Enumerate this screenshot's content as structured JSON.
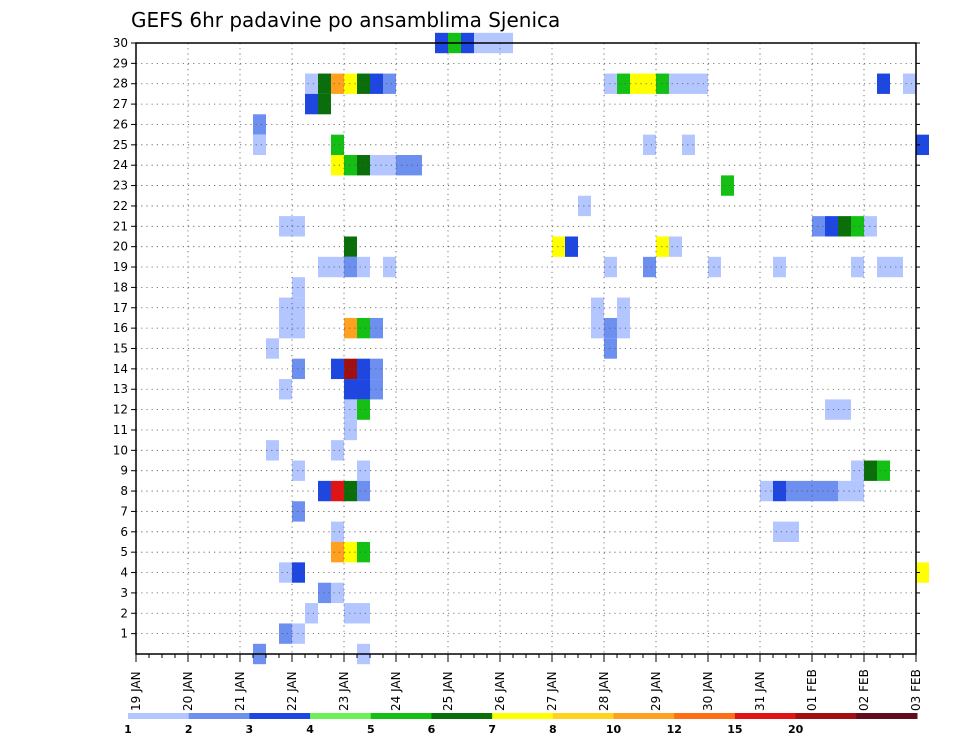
{
  "chart_data": {
    "type": "heatmap",
    "title": "GEFS 6hr padavine po ansamblima Sjenica",
    "ytick_labels": [
      "1",
      "2",
      "3",
      "4",
      "5",
      "6",
      "7",
      "8",
      "9",
      "10",
      "11",
      "12",
      "13",
      "14",
      "15",
      "16",
      "17",
      "18",
      "19",
      "20",
      "21",
      "22",
      "23",
      "24",
      "25",
      "26",
      "27",
      "28",
      "29",
      "30"
    ],
    "yrange": [
      0,
      30
    ],
    "xtick_labels": [
      "19 JAN",
      "20 JAN",
      "21 JAN",
      "22 JAN",
      "23 JAN",
      "24 JAN",
      "25 JAN",
      "26 JAN",
      "27 JAN",
      "28 JAN",
      "29 JAN",
      "30 JAN",
      "31 JAN",
      "01 FEB",
      "02 FEB",
      "03 FEB"
    ],
    "xrange_days": [
      0,
      15
    ],
    "grid": true,
    "colorbar": {
      "labels": [
        "1",
        "2",
        "3",
        "4",
        "5",
        "6",
        "7",
        "8",
        "10",
        "12",
        "15",
        "20"
      ],
      "colors": [
        "#b3c6ff",
        "#6d8ff0",
        "#1e46e0",
        "#6ef05a",
        "#13c013",
        "#0a6e0a",
        "#ffff00",
        "#ffd21e",
        "#ffa01e",
        "#ff6e14",
        "#e01414",
        "#a01010",
        "#640a1e"
      ]
    },
    "cells": [
      {
        "member": 30,
        "step": 23,
        "level": 3
      },
      {
        "member": 30,
        "step": 24,
        "level": 5
      },
      {
        "member": 30,
        "step": 25,
        "level": 3
      },
      {
        "member": 30,
        "step": 26,
        "level": 1
      },
      {
        "member": 30,
        "step": 27,
        "level": 1
      },
      {
        "member": 30,
        "step": 28,
        "level": 1
      },
      {
        "member": 28,
        "step": 13,
        "level": 1
      },
      {
        "member": 28,
        "step": 14,
        "level": 6
      },
      {
        "member": 28,
        "step": 15,
        "level": 9
      },
      {
        "member": 28,
        "step": 16,
        "level": 7
      },
      {
        "member": 28,
        "step": 17,
        "level": 6
      },
      {
        "member": 28,
        "step": 18,
        "level": 3
      },
      {
        "member": 28,
        "step": 19,
        "level": 2
      },
      {
        "member": 28,
        "step": 36,
        "level": 1
      },
      {
        "member": 28,
        "step": 37,
        "level": 5
      },
      {
        "member": 28,
        "step": 38,
        "level": 7
      },
      {
        "member": 28,
        "step": 39,
        "level": 7
      },
      {
        "member": 28,
        "step": 40,
        "level": 5
      },
      {
        "member": 28,
        "step": 41,
        "level": 1
      },
      {
        "member": 28,
        "step": 42,
        "level": 1
      },
      {
        "member": 28,
        "step": 43,
        "level": 1
      },
      {
        "member": 28,
        "step": 57,
        "level": 3
      },
      {
        "member": 28,
        "step": 59,
        "level": 1
      },
      {
        "member": 27,
        "step": 13,
        "level": 3
      },
      {
        "member": 27,
        "step": 14,
        "level": 6
      },
      {
        "member": 26,
        "step": 9,
        "level": 2
      },
      {
        "member": 25,
        "step": 9,
        "level": 1
      },
      {
        "member": 25,
        "step": 15,
        "level": 5
      },
      {
        "member": 25,
        "step": 39,
        "level": 1
      },
      {
        "member": 25,
        "step": 42,
        "level": 1
      },
      {
        "member": 25,
        "step": 60,
        "level": 3
      },
      {
        "member": 24,
        "step": 15,
        "level": 7
      },
      {
        "member": 24,
        "step": 16,
        "level": 5
      },
      {
        "member": 24,
        "step": 17,
        "level": 6
      },
      {
        "member": 24,
        "step": 18,
        "level": 1
      },
      {
        "member": 24,
        "step": 19,
        "level": 1
      },
      {
        "member": 24,
        "step": 20,
        "level": 2
      },
      {
        "member": 24,
        "step": 21,
        "level": 2
      },
      {
        "member": 23,
        "step": 45,
        "level": 5
      },
      {
        "member": 22,
        "step": 34,
        "level": 1
      },
      {
        "member": 21,
        "step": 11,
        "level": 1
      },
      {
        "member": 21,
        "step": 12,
        "level": 1
      },
      {
        "member": 21,
        "step": 52,
        "level": 2
      },
      {
        "member": 21,
        "step": 53,
        "level": 3
      },
      {
        "member": 21,
        "step": 54,
        "level": 6
      },
      {
        "member": 21,
        "step": 55,
        "level": 5
      },
      {
        "member": 21,
        "step": 56,
        "level": 1
      },
      {
        "member": 20,
        "step": 16,
        "level": 6
      },
      {
        "member": 20,
        "step": 32,
        "level": 7
      },
      {
        "member": 20,
        "step": 33,
        "level": 3
      },
      {
        "member": 20,
        "step": 40,
        "level": 7
      },
      {
        "member": 20,
        "step": 41,
        "level": 1
      },
      {
        "member": 19,
        "step": 14,
        "level": 1
      },
      {
        "member": 19,
        "step": 15,
        "level": 1
      },
      {
        "member": 19,
        "step": 16,
        "level": 2
      },
      {
        "member": 19,
        "step": 17,
        "level": 1
      },
      {
        "member": 19,
        "step": 19,
        "level": 1
      },
      {
        "member": 19,
        "step": 36,
        "level": 1
      },
      {
        "member": 19,
        "step": 39,
        "level": 2
      },
      {
        "member": 19,
        "step": 44,
        "level": 1
      },
      {
        "member": 19,
        "step": 49,
        "level": 1
      },
      {
        "member": 19,
        "step": 55,
        "level": 1
      },
      {
        "member": 19,
        "step": 57,
        "level": 1
      },
      {
        "member": 19,
        "step": 58,
        "level": 1
      },
      {
        "member": 18,
        "step": 12,
        "level": 1
      },
      {
        "member": 17,
        "step": 11,
        "level": 1
      },
      {
        "member": 17,
        "step": 12,
        "level": 1
      },
      {
        "member": 17,
        "step": 35,
        "level": 1
      },
      {
        "member": 17,
        "step": 37,
        "level": 1
      },
      {
        "member": 16,
        "step": 11,
        "level": 1
      },
      {
        "member": 16,
        "step": 12,
        "level": 1
      },
      {
        "member": 16,
        "step": 16,
        "level": 9
      },
      {
        "member": 16,
        "step": 17,
        "level": 5
      },
      {
        "member": 16,
        "step": 18,
        "level": 2
      },
      {
        "member": 16,
        "step": 35,
        "level": 1
      },
      {
        "member": 16,
        "step": 36,
        "level": 2
      },
      {
        "member": 16,
        "step": 37,
        "level": 1
      },
      {
        "member": 15,
        "step": 10,
        "level": 1
      },
      {
        "member": 15,
        "step": 36,
        "level": 2
      },
      {
        "member": 14,
        "step": 12,
        "level": 2
      },
      {
        "member": 13,
        "step": 11,
        "level": 1
      },
      {
        "member": 13,
        "step": 16,
        "level": 3
      },
      {
        "member": 13,
        "step": 17,
        "level": 3
      },
      {
        "member": 13,
        "step": 18,
        "level": 2
      },
      {
        "member": 14,
        "step": 15,
        "level": 3
      },
      {
        "member": 14,
        "step": 16,
        "level": 12
      },
      {
        "member": 14,
        "step": 17,
        "level": 3
      },
      {
        "member": 14,
        "step": 18,
        "level": 2
      },
      {
        "member": 12,
        "step": 16,
        "level": 1
      },
      {
        "member": 12,
        "step": 17,
        "level": 5
      },
      {
        "member": 12,
        "step": 53,
        "level": 1
      },
      {
        "member": 12,
        "step": 54,
        "level": 1
      },
      {
        "member": 11,
        "step": 16,
        "level": 1
      },
      {
        "member": 10,
        "step": 10,
        "level": 1
      },
      {
        "member": 10,
        "step": 15,
        "level": 1
      },
      {
        "member": 9,
        "step": 12,
        "level": 1
      },
      {
        "member": 9,
        "step": 17,
        "level": 1
      },
      {
        "member": 9,
        "step": 55,
        "level": 1
      },
      {
        "member": 9,
        "step": 56,
        "level": 6
      },
      {
        "member": 9,
        "step": 57,
        "level": 5
      },
      {
        "member": 8,
        "step": 14,
        "level": 3
      },
      {
        "member": 8,
        "step": 15,
        "level": 11
      },
      {
        "member": 8,
        "step": 16,
        "level": 6
      },
      {
        "member": 8,
        "step": 17,
        "level": 2
      },
      {
        "member": 8,
        "step": 48,
        "level": 1
      },
      {
        "member": 8,
        "step": 49,
        "level": 3
      },
      {
        "member": 8,
        "step": 50,
        "level": 2
      },
      {
        "member": 8,
        "step": 51,
        "level": 2
      },
      {
        "member": 8,
        "step": 52,
        "level": 2
      },
      {
        "member": 8,
        "step": 53,
        "level": 2
      },
      {
        "member": 8,
        "step": 54,
        "level": 1
      },
      {
        "member": 8,
        "step": 55,
        "level": 1
      },
      {
        "member": 7,
        "step": 12,
        "level": 2
      },
      {
        "member": 6,
        "step": 15,
        "level": 1
      },
      {
        "member": 6,
        "step": 49,
        "level": 1
      },
      {
        "member": 6,
        "step": 50,
        "level": 1
      },
      {
        "member": 5,
        "step": 15,
        "level": 9
      },
      {
        "member": 5,
        "step": 16,
        "level": 7
      },
      {
        "member": 5,
        "step": 17,
        "level": 5
      },
      {
        "member": 4,
        "step": 11,
        "level": 1
      },
      {
        "member": 4,
        "step": 12,
        "level": 3
      },
      {
        "member": 4,
        "step": 60,
        "level": 7
      },
      {
        "member": 3,
        "step": 14,
        "level": 2
      },
      {
        "member": 3,
        "step": 15,
        "level": 1
      },
      {
        "member": 2,
        "step": 13,
        "level": 1
      },
      {
        "member": 2,
        "step": 16,
        "level": 1
      },
      {
        "member": 2,
        "step": 17,
        "level": 1
      },
      {
        "member": 1,
        "step": 11,
        "level": 2
      },
      {
        "member": 1,
        "step": 12,
        "level": 1
      },
      {
        "member": 0,
        "step": 9,
        "level": 2
      },
      {
        "member": 0,
        "step": 17,
        "level": 1
      }
    ]
  }
}
